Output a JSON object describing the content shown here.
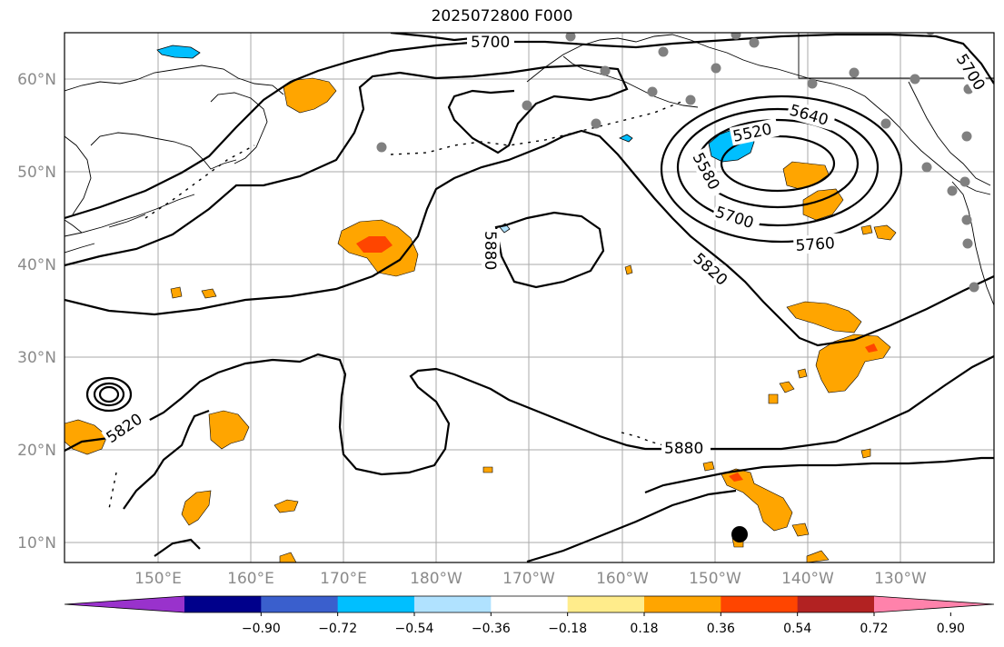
{
  "title": "2025072800 F000",
  "lat_labels": [
    "60°N",
    "50°N",
    "40°N",
    "30°N",
    "20°N",
    "10°N"
  ],
  "lon_labels": [
    "150°E",
    "160°E",
    "170°E",
    "180°W",
    "170°W",
    "160°W",
    "150°W",
    "140°W",
    "130°W"
  ],
  "contour_labels": [
    "5700",
    "5640",
    "5520",
    "5580",
    "5700",
    "5760",
    "5820",
    "5880",
    "5820",
    "5880",
    "5700"
  ],
  "colorbar": {
    "ticks": [
      "−0.90",
      "−0.72",
      "−0.54",
      "−0.36",
      "−0.18",
      "0.18",
      "0.36",
      "0.54",
      "0.72",
      "0.90"
    ],
    "colors": [
      "#9932cc",
      "#00008b",
      "#3a5fcd",
      "#00bfff",
      "#b0e2ff",
      "#ffffff",
      "#ffec8b",
      "#ffa500",
      "#ff4500",
      "#b22222",
      "#ff82ab"
    ]
  },
  "legend_colors": {
    "positive_field": "#ffa500",
    "positive_strong": "#ff4500",
    "negative_field": "#00bfff",
    "stations": "#808080",
    "contours": "#000000"
  }
}
